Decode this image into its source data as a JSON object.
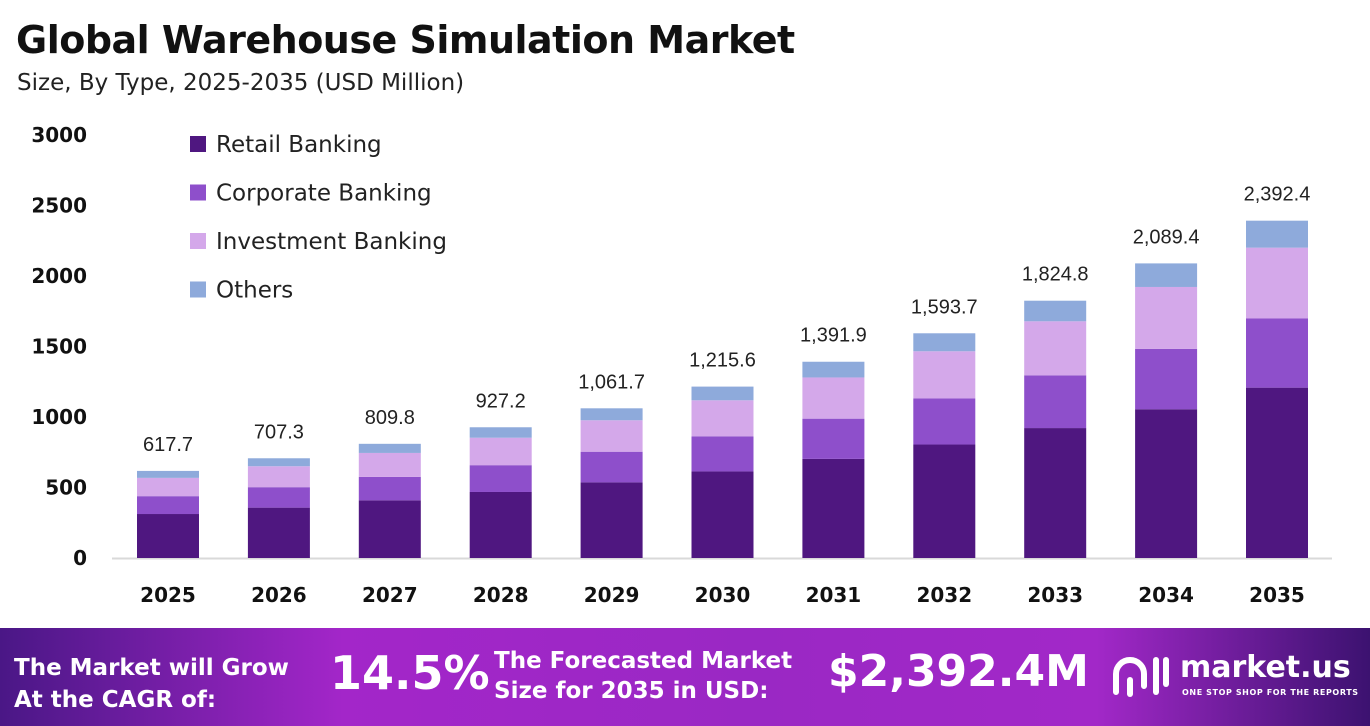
{
  "chart_data": {
    "type": "bar",
    "stacked": true,
    "title": "Global Warehouse Simulation Market",
    "subtitle": "Size, By Type, 2025-2035 (USD Million)",
    "categories": [
      "2025",
      "2026",
      "2027",
      "2028",
      "2029",
      "2030",
      "2031",
      "2032",
      "2033",
      "2034",
      "2035"
    ],
    "series": [
      {
        "name": "Retail Banking",
        "color": "#4f1780",
        "values": [
          311.9,
          357.2,
          409.0,
          468.2,
          536.2,
          613.9,
          702.9,
          804.8,
          921.5,
          1055.1,
          1208.2
        ]
      },
      {
        "name": "Corporate Banking",
        "color": "#8e4fcb",
        "values": [
          126.6,
          145.0,
          166.0,
          190.1,
          217.6,
          249.2,
          285.3,
          326.7,
          374.1,
          428.3,
          490.4
        ]
      },
      {
        "name": "Investment Banking",
        "color": "#d4a8ea",
        "values": [
          129.7,
          148.5,
          170.1,
          194.7,
          223.0,
          255.3,
          292.3,
          334.7,
          383.2,
          438.8,
          502.4
        ]
      },
      {
        "name": "Others",
        "color": "#8eaadb",
        "values": [
          49.5,
          56.6,
          64.7,
          74.2,
          84.9,
          97.2,
          111.4,
          127.5,
          146.0,
          167.2,
          191.4
        ]
      }
    ],
    "totals": [
      "617.7",
      "707.3",
      "809.8",
      "927.2",
      "1,061.7",
      "1,215.6",
      "1,391.9",
      "1,593.7",
      "1,824.8",
      "2,089.4",
      "2,392.4"
    ],
    "total_values": [
      617.7,
      707.3,
      809.8,
      927.2,
      1061.7,
      1215.6,
      1391.9,
      1593.7,
      1824.8,
      2089.4,
      2392.4
    ],
    "yticks": [
      "0",
      "500",
      "1000",
      "1500",
      "2000",
      "2500",
      "3000"
    ],
    "ylim": [
      0,
      3000
    ],
    "xlabel": "",
    "ylabel": "",
    "grid": false,
    "legend": "top-left"
  },
  "footer": {
    "cagr_label_line1": "The Market will Grow",
    "cagr_label_line2": "At the CAGR of:",
    "cagr_value": "14.5%",
    "forecast_label_line1": "The Forecasted Market",
    "forecast_label_line2": "Size for 2035 in USD:",
    "forecast_value": "$2,392.4M",
    "brand": "market.us",
    "tagline": "ONE STOP SHOP FOR THE REPORTS"
  }
}
